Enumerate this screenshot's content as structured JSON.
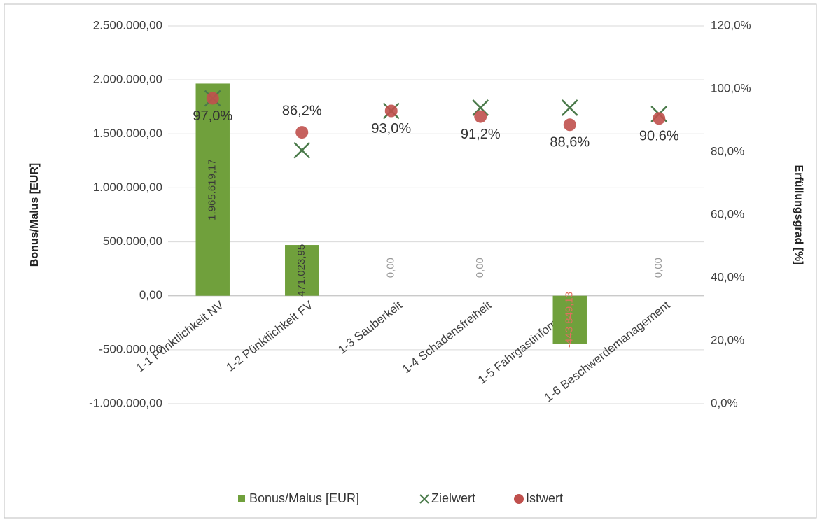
{
  "chart_data": {
    "type": "bar",
    "categories": [
      "1-1 Pünktlichkeit NV",
      "1-2 Pünktlichkeit FV",
      "1-3 Sauberkeit",
      "1-4 Schadensfreiheit",
      "1-5 Fahrgastinformation",
      "1-6 Beschwerdemanagement"
    ],
    "series": [
      {
        "name": "Bonus/Malus [EUR]",
        "type": "bar",
        "color": "#70a03c",
        "values": [
          1965619.17,
          471023.95,
          0,
          0,
          -443849.13,
          0
        ],
        "value_labels": [
          "1.965.619,17",
          "471.023,95",
          "0,00",
          "0,00",
          "-443 849,13",
          "0,00"
        ]
      },
      {
        "name": "Zielwert",
        "type": "scatter",
        "marker": "x",
        "axis": "y2",
        "color": "#4a7a4a",
        "values": [
          97,
          80.5,
          93,
          94,
          94,
          92
        ]
      },
      {
        "name": "Istwert",
        "type": "scatter",
        "marker": "circle",
        "axis": "y2",
        "color": "#c0504d",
        "values": [
          97.0,
          86.2,
          93.0,
          91.2,
          88.6,
          90.6
        ],
        "value_labels": [
          "97,0%",
          "86,2%",
          "93,0%",
          "91,2%",
          "88,6%",
          "90.6%"
        ]
      }
    ],
    "y_label": "Bonus/Malus [EUR]",
    "y2_label": "Erfüllungsgrad [%]",
    "ylim": [
      -1000000,
      2500000
    ],
    "yticks": [
      {
        "value": -1000000,
        "label": "-1.000.000,00"
      },
      {
        "value": -500000,
        "label": "-500.000,00"
      },
      {
        "value": 0,
        "label": "0,00"
      },
      {
        "value": 500000,
        "label": "500.000,00"
      },
      {
        "value": 1000000,
        "label": "1.000.000,00"
      },
      {
        "value": 1500000,
        "label": "1.500.000,00"
      },
      {
        "value": 2000000,
        "label": "2.000.000,00"
      },
      {
        "value": 2500000,
        "label": "2.500.000,00"
      }
    ],
    "y2lim": [
      0,
      120
    ],
    "y2ticks": [
      {
        "value": 0,
        "label": "0,0%"
      },
      {
        "value": 20,
        "label": "20,0%"
      },
      {
        "value": 40,
        "label": "40,0%"
      },
      {
        "value": 60,
        "label": "60,0%"
      },
      {
        "value": 80,
        "label": "80,0%"
      },
      {
        "value": 100,
        "label": "100,0%"
      },
      {
        "value": 120,
        "label": "120,0%"
      }
    ],
    "grid": true,
    "legend": "bottom"
  }
}
